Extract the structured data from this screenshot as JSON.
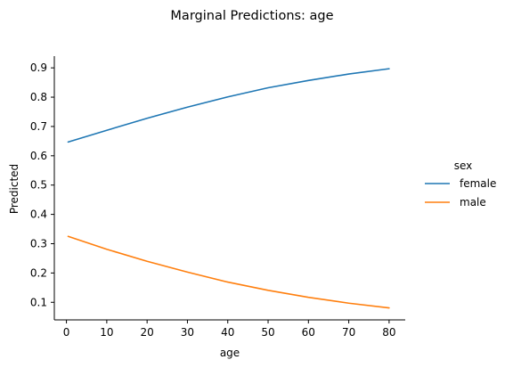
{
  "chart_data": {
    "type": "line",
    "title": "Marginal Predictions: age",
    "xlabel": "age",
    "ylabel": "Predicted",
    "xlim": [
      -3,
      84
    ],
    "ylim": [
      0.04,
      0.94
    ],
    "xticks": [
      0,
      10,
      20,
      30,
      40,
      50,
      60,
      70,
      80
    ],
    "yticks": [
      0.1,
      0.2,
      0.3,
      0.4,
      0.5,
      0.6,
      0.7,
      0.8,
      0.9
    ],
    "grid": false,
    "legend": {
      "title": "sex",
      "placement": "right"
    },
    "x": [
      0.42,
      10,
      20,
      30,
      40,
      50,
      60,
      70,
      80
    ],
    "series": [
      {
        "name": "female",
        "color": "#1f77b4",
        "values": [
          0.647,
          0.687,
          0.728,
          0.766,
          0.801,
          0.832,
          0.857,
          0.879,
          0.897
        ]
      },
      {
        "name": "male",
        "color": "#ff7f0e",
        "values": [
          0.325,
          0.281,
          0.24,
          0.203,
          0.169,
          0.141,
          0.117,
          0.097,
          0.081
        ]
      }
    ]
  }
}
